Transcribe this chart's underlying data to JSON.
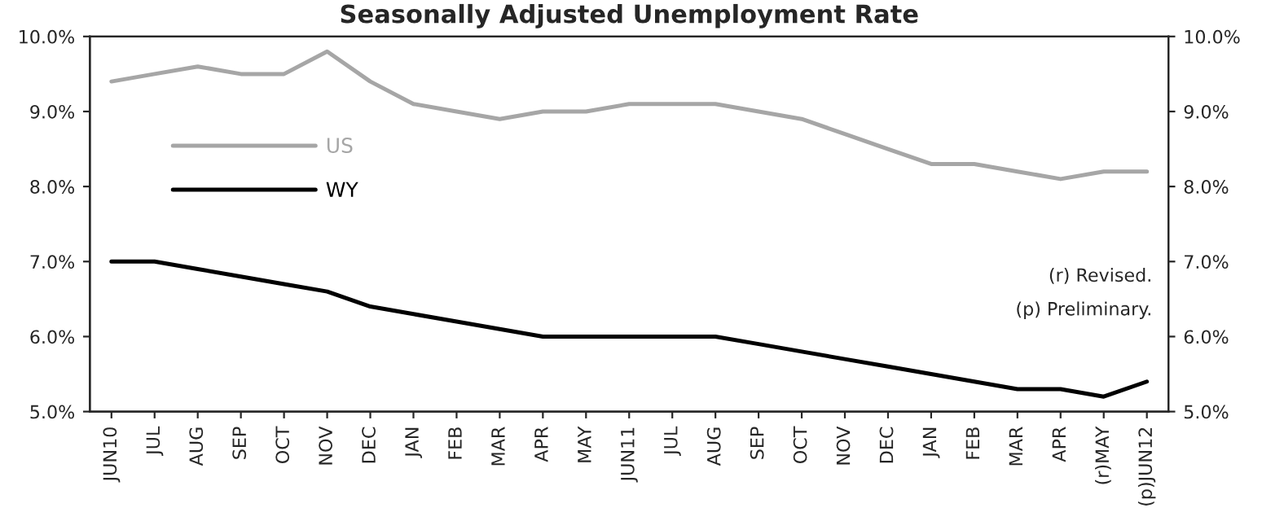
{
  "chart_data": {
    "type": "line",
    "title": "Seasonally Adjusted Unemployment Rate",
    "categories": [
      "JUN10",
      "JUL",
      "AUG",
      "SEP",
      "OCT",
      "NOV",
      "DEC",
      "JAN",
      "FEB",
      "MAR",
      "APR",
      "MAY",
      "JUN11",
      "JUL",
      "AUG",
      "SEP",
      "OCT",
      "NOV",
      "DEC",
      "JAN",
      "FEB",
      "MAR",
      "APR",
      "(r)MAY",
      "(p)JUN12"
    ],
    "series": [
      {
        "name": "US",
        "color": "#a6a6a6",
        "values": [
          9.4,
          9.5,
          9.6,
          9.5,
          9.5,
          9.8,
          9.4,
          9.1,
          9.0,
          8.9,
          9.0,
          9.0,
          9.1,
          9.1,
          9.1,
          9.0,
          8.9,
          8.7,
          8.5,
          8.3,
          8.3,
          8.2,
          8.1,
          8.2,
          8.2
        ]
      },
      {
        "name": "WY",
        "color": "#000000",
        "values": [
          7.0,
          7.0,
          6.9,
          6.8,
          6.7,
          6.6,
          6.4,
          6.3,
          6.2,
          6.1,
          6.0,
          6.0,
          6.0,
          6.0,
          6.0,
          5.9,
          5.8,
          5.7,
          5.6,
          5.5,
          5.4,
          5.3,
          5.3,
          5.2,
          5.4
        ]
      }
    ],
    "ylim": [
      5,
      10
    ],
    "yticks": [
      {
        "value": 5,
        "label": "5.0%"
      },
      {
        "value": 6,
        "label": "6.0%"
      },
      {
        "value": 7,
        "label": "7.0%"
      },
      {
        "value": 8,
        "label": "8.0%"
      },
      {
        "value": 9,
        "label": "9.0%"
      },
      {
        "value": 10,
        "label": "10.0%"
      }
    ],
    "y2lim": [
      5,
      10
    ],
    "y2ticks": [
      {
        "value": 5,
        "label": "5.0%"
      },
      {
        "value": 6,
        "label": "6.0%"
      },
      {
        "value": 7,
        "label": "7.0%"
      },
      {
        "value": 8,
        "label": "8.0%"
      },
      {
        "value": 9,
        "label": "9.0%"
      },
      {
        "value": 10,
        "label": "10.0%"
      }
    ],
    "annotations": [
      "(r) Revised.",
      "(p) Preliminary."
    ],
    "legend": "top left",
    "grid": false,
    "marker": "none",
    "line_style": "solid"
  }
}
